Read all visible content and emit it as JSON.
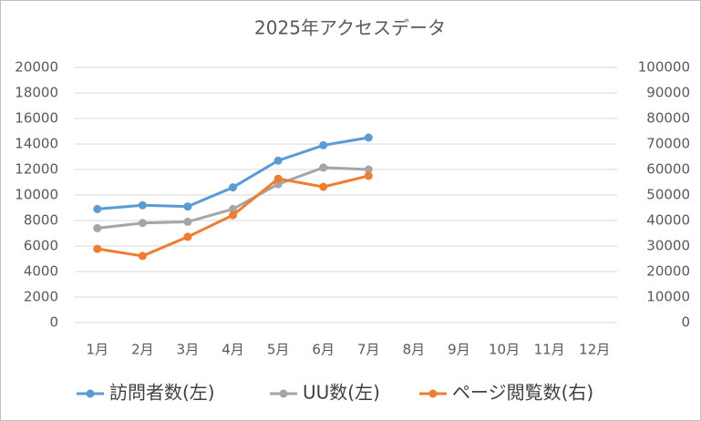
{
  "chart_data": {
    "type": "line",
    "title": "2025年アクセスデータ",
    "categories": [
      "1月",
      "2月",
      "3月",
      "4月",
      "5月",
      "6月",
      "7月",
      "8月",
      "9月",
      "10月",
      "11月",
      "12月"
    ],
    "series": [
      {
        "name": "訪問者数(左)",
        "color": "#5b9bd5",
        "values": [
          8900,
          9200,
          9100,
          10600,
          12700,
          13900,
          14500,
          null,
          null,
          null,
          null,
          null
        ]
      },
      {
        "name": "UU数(左)",
        "color": "#a5a5a5",
        "values": [
          7400,
          7800,
          7900,
          8900,
          10850,
          12150,
          12000,
          null,
          null,
          null,
          null,
          null
        ]
      },
      {
        "name": "ページ閲覧数(右)",
        "color": "#ed7d31",
        "axis": "y2",
        "values": [
          28900,
          26100,
          33600,
          42100,
          56400,
          53200,
          57500,
          null,
          null,
          null,
          null,
          null
        ]
      }
    ],
    "ylim": [
      0,
      20000
    ],
    "yticks": [
      0,
      2000,
      4000,
      6000,
      8000,
      10000,
      12000,
      14000,
      16000,
      18000,
      20000
    ],
    "y2lim": [
      0,
      100000
    ],
    "y2ticks": [
      0,
      10000,
      20000,
      30000,
      40000,
      50000,
      60000,
      70000,
      80000,
      90000,
      100000
    ],
    "grid": true,
    "legend": "bottom"
  }
}
